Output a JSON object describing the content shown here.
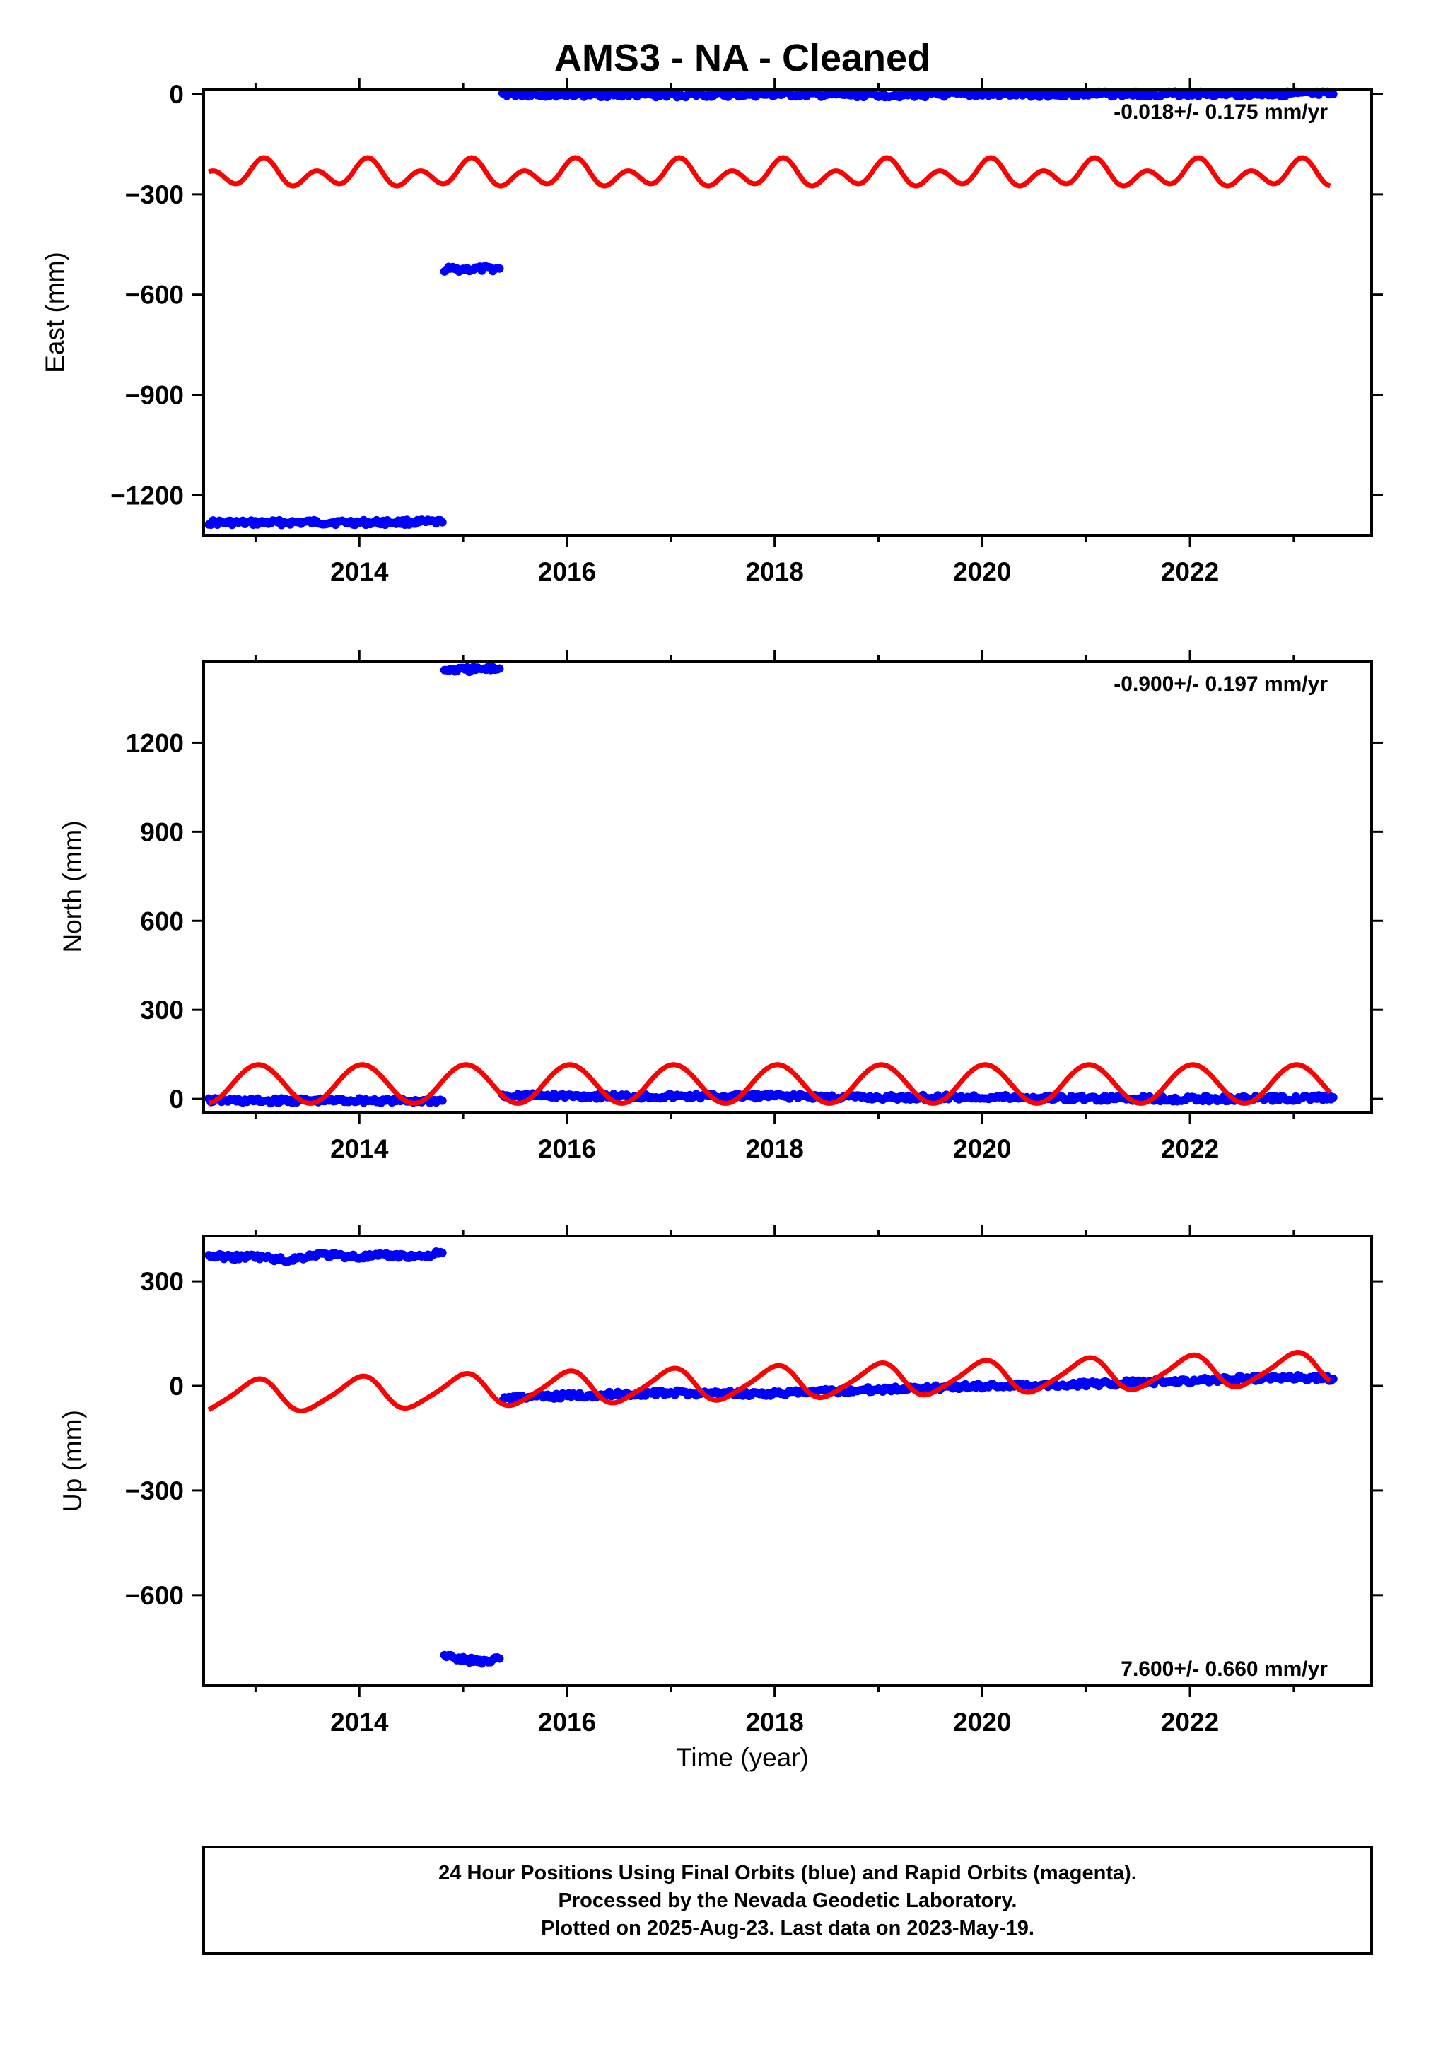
{
  "title": "AMS3  - NA - Cleaned",
  "xlabel": "Time (year)",
  "caption": [
    "24 Hour Positions Using Final Orbits (blue) and Rapid Orbits (magenta).",
    "Processed by the Nevada Geodetic Laboratory.",
    "Plotted on 2025-Aug-23. Last data on 2023-May-19."
  ],
  "colors": {
    "final": "#0000ff",
    "model": "#ff0000",
    "axes": "#000000"
  },
  "chart_data": [
    {
      "type": "scatter",
      "component": "east",
      "ylabel": "East (mm)",
      "xlim": [
        2012.5,
        2023.75
      ],
      "ylim": [
        -1320,
        15
      ],
      "xticks": [
        2014,
        2016,
        2018,
        2020,
        2022
      ],
      "xtick_labels": [
        "2014",
        "2016",
        "2018",
        "2020",
        "2022"
      ],
      "yticks": [
        0,
        -300,
        -600,
        -900,
        -1200
      ],
      "ytick_labels": [
        "0",
        "−300",
        "−600",
        "−900",
        "−1200"
      ],
      "rate_text": "-0.018+/- 0.175 mm/yr",
      "rate_position": "top-right",
      "series": [
        {
          "role": "final",
          "segments": [
            {
              "x": [
                2012.55,
                2013.0,
                2013.5,
                2014.0,
                2014.5,
                2014.8
              ],
              "y": [
                -1282,
                -1283,
                -1281,
                -1282,
                -1281,
                -1281
              ]
            },
            {
              "x": [
                2014.82,
                2015.0,
                2015.2,
                2015.35
              ],
              "y": [
                -524,
                -524,
                -523,
                -522
              ]
            },
            {
              "x": [
                2015.38,
                2016.0,
                2017.0,
                2018.0,
                2019.0,
                2020.0,
                2021.0,
                2022.0,
                2023.0,
                2023.38
              ],
              "y": [
                0,
                -1,
                -2,
                -1,
                -2,
                -1,
                0,
                1,
                1,
                0
              ]
            }
          ]
        },
        {
          "role": "model",
          "type": "line",
          "model": {
            "x_start": 2012.55,
            "x_end": 2023.35,
            "offset": -240,
            "annual_amp": 20,
            "annual_phase": 1.2,
            "semiannual_amp": 30,
            "semiannual_phase": 0.5
          }
        }
      ]
    },
    {
      "type": "scatter",
      "component": "north",
      "ylabel": "North (mm)",
      "xlim": [
        2012.5,
        2023.75
      ],
      "ylim": [
        -45,
        1475
      ],
      "xticks": [
        2014,
        2016,
        2018,
        2020,
        2022
      ],
      "xtick_labels": [
        "2014",
        "2016",
        "2018",
        "2020",
        "2022"
      ],
      "yticks": [
        0,
        300,
        600,
        900,
        1200
      ],
      "ytick_labels": [
        "0",
        "300",
        "600",
        "900",
        "1200"
      ],
      "rate_text": "-0.900+/- 0.197 mm/yr",
      "rate_position": "top-right",
      "series": [
        {
          "role": "final",
          "segments": [
            {
              "x": [
                2012.55,
                2013.0,
                2013.5,
                2014.0,
                2014.5,
                2014.8
              ],
              "y": [
                -5,
                -7,
                -6,
                -5,
                -7,
                -6
              ]
            },
            {
              "x": [
                2014.82,
                2015.0,
                2015.2,
                2015.35
              ],
              "y": [
                1445,
                1446,
                1448,
                1450
              ]
            },
            {
              "x": [
                2015.38,
                2016.0,
                2017.0,
                2018.0,
                2019.0,
                2020.0,
                2021.0,
                2022.0,
                2023.0,
                2023.38
              ],
              "y": [
                12,
                10,
                8,
                10,
                4,
                6,
                2,
                0,
                2,
                5
              ]
            }
          ]
        },
        {
          "role": "model",
          "type": "line",
          "model": {
            "x_start": 2012.55,
            "x_end": 2023.35,
            "offset": 50,
            "annual_amp": 65,
            "annual_phase": 1.4,
            "semiannual_amp": 0,
            "semiannual_phase": 0
          }
        }
      ]
    },
    {
      "type": "scatter",
      "component": "up",
      "ylabel": "Up (mm)",
      "xlim": [
        2012.5,
        2023.75
      ],
      "ylim": [
        -860,
        430
      ],
      "xticks": [
        2014,
        2016,
        2018,
        2020,
        2022
      ],
      "xtick_labels": [
        "2014",
        "2016",
        "2018",
        "2020",
        "2022"
      ],
      "yticks": [
        300,
        0,
        -300,
        -600
      ],
      "ytick_labels": [
        "300",
        "0",
        "−300",
        "−600"
      ],
      "rate_text": "7.600+/- 0.660 mm/yr",
      "rate_position": "bottom-right",
      "series": [
        {
          "role": "final",
          "segments": [
            {
              "x": [
                2012.55,
                2012.8,
                2013.0,
                2013.3,
                2013.6,
                2014.0,
                2014.3,
                2014.6,
                2014.8
              ],
              "y": [
                373,
                369,
                371,
                360,
                378,
                370,
                374,
                372,
                382
              ]
            },
            {
              "x": [
                2014.82,
                2015.0,
                2015.2,
                2015.35
              ],
              "y": [
                -775,
                -785,
                -790,
                -782
              ]
            },
            {
              "x": [
                2015.38,
                2016.0,
                2017.0,
                2018.0,
                2019.0,
                2020.0,
                2021.0,
                2022.0,
                2023.0,
                2023.38
              ],
              "y": [
                -35,
                -28,
                -20,
                -22,
                -10,
                0,
                5,
                15,
                25,
                20
              ]
            }
          ]
        },
        {
          "role": "model",
          "type": "line",
          "model": {
            "x_start": 2012.55,
            "x_end": 2023.35,
            "offset": -10,
            "slope": 7.6,
            "slope_ref": 2015.5,
            "annual_amp": 45,
            "annual_phase": 1.6,
            "semiannual_amp": 8,
            "semiannual_phase": 0.3
          }
        }
      ]
    }
  ]
}
